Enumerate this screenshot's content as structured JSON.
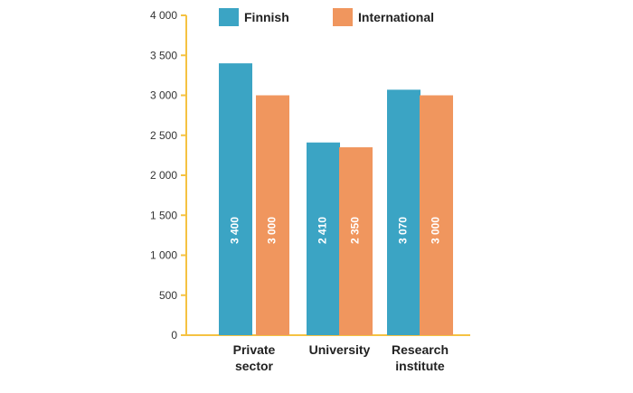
{
  "colors": {
    "finnish": "#3ba4c4",
    "international": "#f0965e",
    "axis": "#f5c242",
    "tick_text": "#333333"
  },
  "chart_data": {
    "type": "bar",
    "categories": [
      [
        "Private",
        "sector"
      ],
      [
        "University"
      ],
      [
        "Research",
        "institute"
      ]
    ],
    "series": [
      {
        "name": "Finnish",
        "values": [
          3400,
          2410,
          3070
        ],
        "value_labels": [
          "3 400",
          "2 410",
          "3 070"
        ]
      },
      {
        "name": "International",
        "values": [
          3000,
          2350,
          3000
        ],
        "value_labels": [
          "3 000",
          "2 350",
          "3 000"
        ]
      }
    ],
    "ylim": [
      0,
      4000
    ],
    "yticks": [
      0,
      500,
      1000,
      1500,
      2000,
      2500,
      3000,
      3500,
      4000
    ],
    "ytick_labels": [
      "0",
      "500",
      "1 000",
      "1 500",
      "2 000",
      "2 500",
      "3 000",
      "3 500",
      "4 000"
    ],
    "title": "",
    "xlabel": "",
    "ylabel": "",
    "legend": "top",
    "grid": false
  }
}
